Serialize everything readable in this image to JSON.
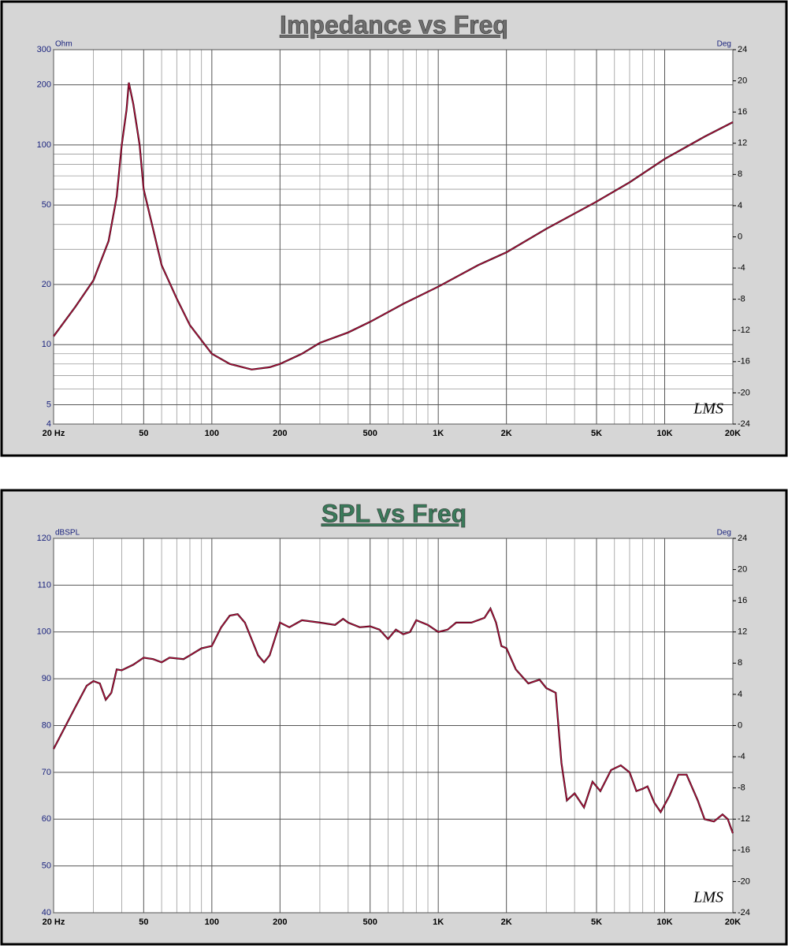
{
  "chart_data": [
    {
      "type": "line",
      "title": "Impedance vs Freq",
      "title_color": "#6e6e6e",
      "ylabel": "Ohm",
      "y2label": "Deg",
      "watermark": "LMS",
      "xlog": true,
      "ylog": true,
      "grid": true,
      "color": "#b0103c",
      "xlim": [
        20,
        20000
      ],
      "xticks": [
        {
          "value": 20,
          "label": "20 Hz"
        },
        50,
        100,
        200,
        500,
        {
          "value": 1000,
          "label": "1K"
        },
        {
          "value": 2000,
          "label": "2K"
        },
        {
          "value": 5000,
          "label": "5K"
        },
        {
          "value": 10000,
          "label": "10K"
        },
        {
          "value": 20000,
          "label": "20K"
        }
      ],
      "x_minor_grid": [
        30,
        40,
        60,
        70,
        80,
        90,
        300,
        400,
        600,
        700,
        800,
        900,
        3000,
        4000,
        6000,
        7000,
        8000,
        9000
      ],
      "ylim": [
        4,
        300
      ],
      "yticks": [
        4,
        5,
        10,
        20,
        50,
        100,
        200,
        300
      ],
      "y_minor_grid": [
        6,
        7,
        8,
        9,
        30,
        40,
        60,
        70,
        80,
        90
      ],
      "y2lim": [
        -24,
        24
      ],
      "y2ticks": [
        -24,
        -20,
        -16,
        -12,
        -8,
        -4,
        0,
        4,
        8,
        12,
        16,
        20,
        24
      ],
      "x": [
        20,
        25,
        30,
        35,
        38,
        40,
        42,
        43,
        45,
        48,
        50,
        55,
        60,
        70,
        80,
        100,
        120,
        150,
        180,
        200,
        250,
        300,
        400,
        500,
        700,
        1000,
        1500,
        2000,
        3000,
        5000,
        7000,
        10000,
        15000,
        20000
      ],
      "values": [
        11,
        15.5,
        21,
        33,
        55,
        100,
        150,
        205,
        160,
        100,
        60,
        38,
        25,
        17,
        12.5,
        9,
        8,
        7.5,
        7.7,
        8,
        9,
        10.2,
        11.5,
        13,
        16,
        19.5,
        25,
        29,
        38,
        52,
        65,
        85,
        110,
        130
      ]
    },
    {
      "type": "line",
      "title": "SPL vs Freq",
      "title_color": "#3a7a5a",
      "ylabel": "dBSPL",
      "y2label": "Deg",
      "watermark": "LMS",
      "xlog": true,
      "ylog": false,
      "grid": true,
      "color": "#b0103c",
      "xlim": [
        20,
        20000
      ],
      "xticks": [
        {
          "value": 20,
          "label": "20 Hz"
        },
        50,
        100,
        200,
        500,
        {
          "value": 1000,
          "label": "1K"
        },
        {
          "value": 2000,
          "label": "2K"
        },
        {
          "value": 5000,
          "label": "5K"
        },
        {
          "value": 10000,
          "label": "10K"
        },
        {
          "value": 20000,
          "label": "20K"
        }
      ],
      "x_minor_grid": [
        30,
        40,
        60,
        70,
        80,
        90,
        300,
        400,
        600,
        700,
        800,
        900,
        3000,
        4000,
        6000,
        7000,
        8000,
        9000
      ],
      "ylim": [
        40,
        120
      ],
      "yticks": [
        40,
        50,
        60,
        70,
        80,
        90,
        100,
        110,
        120
      ],
      "y2lim": [
        -24,
        24
      ],
      "y2ticks": [
        -24,
        -20,
        -16,
        -12,
        -8,
        -4,
        0,
        4,
        8,
        12,
        16,
        20,
        24
      ],
      "x": [
        20,
        25,
        28,
        30,
        32,
        34,
        36,
        38,
        40,
        45,
        50,
        55,
        60,
        65,
        75,
        80,
        90,
        100,
        110,
        120,
        130,
        140,
        160,
        170,
        180,
        200,
        220,
        250,
        300,
        350,
        380,
        400,
        450,
        500,
        550,
        600,
        650,
        700,
        750,
        800,
        900,
        1000,
        1100,
        1200,
        1400,
        1600,
        1700,
        1800,
        1900,
        2000,
        2200,
        2500,
        2800,
        3000,
        3300,
        3500,
        3700,
        4000,
        4400,
        4800,
        5200,
        5800,
        6400,
        7000,
        7500,
        8000,
        8400,
        9000,
        9600,
        10500,
        11500,
        12500,
        14000,
        15000,
        16500,
        18000,
        19000,
        20000
      ],
      "values": [
        75,
        84,
        88.5,
        89.5,
        89,
        85.5,
        87,
        92,
        91.8,
        93,
        94.5,
        94.2,
        93.5,
        94.5,
        94.2,
        95,
        96.5,
        97,
        101,
        103.5,
        103.8,
        102,
        95,
        93.5,
        95,
        102,
        101,
        102.5,
        102,
        101.5,
        102.8,
        102,
        101,
        101.2,
        100.5,
        98.5,
        100.5,
        99.5,
        100,
        102.5,
        101.5,
        100,
        100.5,
        102,
        102,
        103,
        105,
        102,
        97,
        96.5,
        92,
        89,
        89.8,
        88,
        87,
        72,
        64,
        65.5,
        62.5,
        68,
        66,
        70.5,
        71.5,
        70,
        66,
        66.5,
        67,
        63.5,
        61.5,
        65,
        69.5,
        69.5,
        64,
        60,
        59.5,
        61,
        60,
        57
      ]
    }
  ]
}
